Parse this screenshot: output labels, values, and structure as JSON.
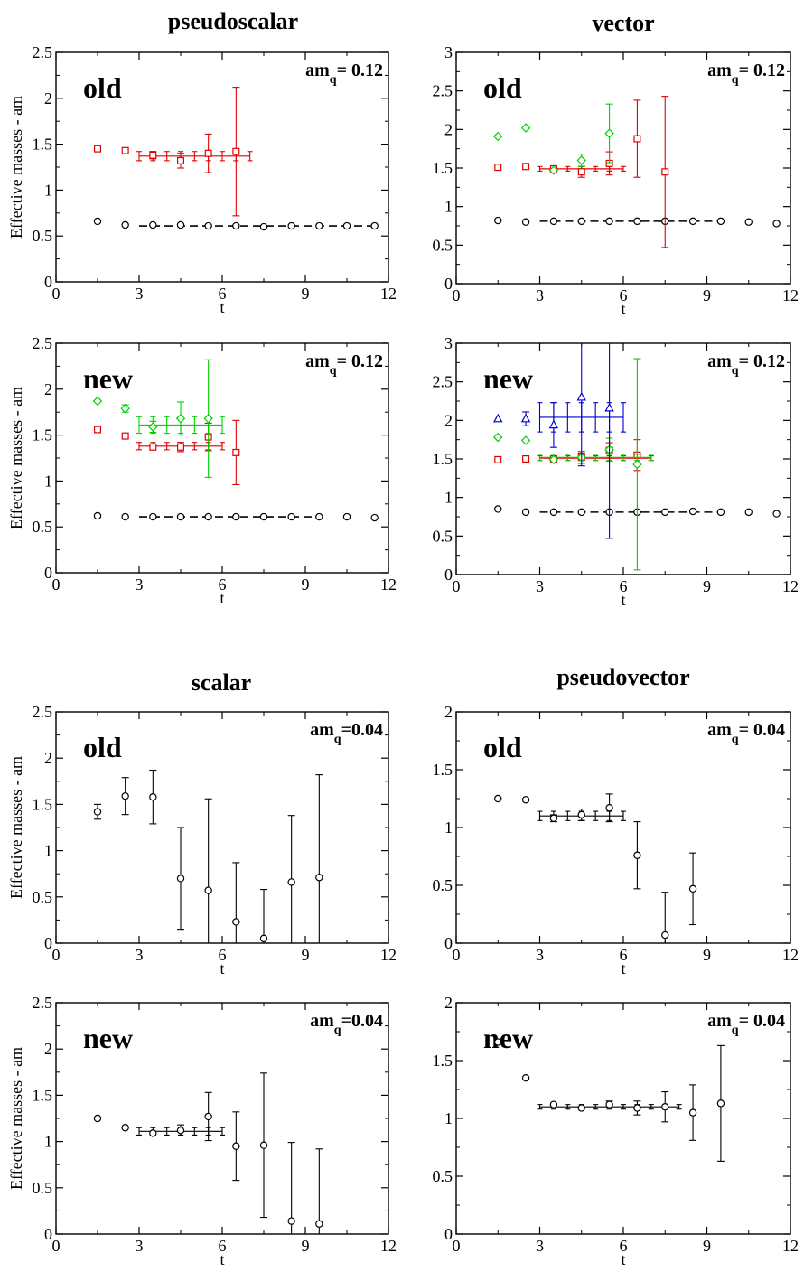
{
  "figure": {
    "xlabel": "t",
    "ylabel": "Effective masses - am",
    "colors": {
      "black": "#000000",
      "red": "#e00000",
      "green": "#00d000",
      "blue": "#0000d0"
    },
    "marker_icons": {
      "black": "circle-icon",
      "red": "square-icon",
      "green": "diamond-icon",
      "blue": "triangle-icon"
    }
  },
  "chart_data": [
    {
      "type": "scatter",
      "column_title": "pseudoscalar",
      "panel_label": "old",
      "mass_label_main": "am",
      "mass_label_sub": "q",
      "mass_label_value": "= 0.12",
      "xlim": [
        0,
        12
      ],
      "xticks": [
        "0",
        "3",
        "6",
        "9",
        "12"
      ],
      "ylim": [
        0,
        2.5
      ],
      "yticks": [
        "0",
        "0.5",
        "1",
        "1.5",
        "2",
        "2.5"
      ],
      "series": [
        {
          "color": "black",
          "marker": "circle",
          "points": [
            [
              1.5,
              0.66
            ],
            [
              2.5,
              0.62
            ],
            [
              3.5,
              0.62
            ],
            [
              4.5,
              0.62
            ],
            [
              5.5,
              0.61
            ],
            [
              6.5,
              0.61
            ],
            [
              7.5,
              0.6
            ],
            [
              8.5,
              0.61
            ],
            [
              9.5,
              0.61
            ],
            [
              10.5,
              0.61
            ],
            [
              11.5,
              0.61
            ]
          ],
          "fit": {
            "x": [
              3,
              11.5
            ],
            "value": 0.61,
            "dashed": true
          }
        },
        {
          "color": "red",
          "marker": "square",
          "points": [
            [
              1.5,
              1.45,
              0.02
            ],
            [
              2.5,
              1.43,
              0.02
            ],
            [
              3.5,
              1.38,
              0.04
            ],
            [
              4.5,
              1.32,
              0.08
            ],
            [
              5.5,
              1.4,
              0.21
            ],
            [
              6.5,
              1.42,
              0.7
            ]
          ],
          "fit": {
            "x": [
              3,
              7
            ],
            "value": 1.37,
            "err": 0.05
          }
        }
      ]
    },
    {
      "type": "scatter",
      "column_title": "vector",
      "panel_label": "old",
      "mass_label_main": "am",
      "mass_label_sub": "q",
      "mass_label_value": "= 0.12",
      "xlim": [
        0,
        12
      ],
      "xticks": [
        "0",
        "3",
        "6",
        "9",
        "12"
      ],
      "ylim": [
        0,
        3
      ],
      "yticks": [
        "0",
        "0.5",
        "1",
        "1.5",
        "2",
        "2.5",
        "3"
      ],
      "series": [
        {
          "color": "black",
          "marker": "circle",
          "points": [
            [
              1.5,
              0.82
            ],
            [
              2.5,
              0.8
            ],
            [
              3.5,
              0.81
            ],
            [
              4.5,
              0.81
            ],
            [
              5.5,
              0.81
            ],
            [
              6.5,
              0.81
            ],
            [
              7.5,
              0.81
            ],
            [
              8.5,
              0.81
            ],
            [
              9.5,
              0.81
            ],
            [
              10.5,
              0.8
            ],
            [
              11.5,
              0.78
            ]
          ],
          "fit": {
            "x": [
              3,
              9.5
            ],
            "value": 0.81,
            "dashed": true
          }
        },
        {
          "color": "red",
          "marker": "square",
          "points": [
            [
              1.5,
              1.51,
              0.02
            ],
            [
              2.5,
              1.52,
              0.02
            ],
            [
              3.5,
              1.49,
              0.03
            ],
            [
              4.5,
              1.45,
              0.07
            ],
            [
              5.5,
              1.56,
              0.15
            ],
            [
              6.5,
              1.88,
              0.5
            ],
            [
              7.5,
              1.45,
              0.98
            ]
          ],
          "fit": {
            "x": [
              3,
              6
            ],
            "value": 1.49,
            "err": 0.03
          }
        },
        {
          "color": "green",
          "marker": "diamond",
          "points": [
            [
              1.5,
              1.91,
              0.01
            ],
            [
              2.5,
              2.02,
              0.01
            ],
            [
              3.5,
              1.47,
              0.02
            ],
            [
              4.5,
              1.6,
              0.08
            ],
            [
              5.5,
              1.95,
              0.38
            ]
          ]
        }
      ]
    },
    {
      "type": "scatter",
      "column_title": "",
      "panel_label": "new",
      "mass_label_main": "am",
      "mass_label_sub": "q",
      "mass_label_value": "= 0.12",
      "xlim": [
        0,
        12
      ],
      "xticks": [
        "0",
        "3",
        "6",
        "9",
        "12"
      ],
      "ylim": [
        0,
        2.5
      ],
      "yticks": [
        "0",
        "0.5",
        "1",
        "1.5",
        "2",
        "2.5"
      ],
      "series": [
        {
          "color": "black",
          "marker": "circle",
          "points": [
            [
              1.5,
              0.62
            ],
            [
              2.5,
              0.61
            ],
            [
              3.5,
              0.61
            ],
            [
              4.5,
              0.61
            ],
            [
              5.5,
              0.61
            ],
            [
              6.5,
              0.61
            ],
            [
              7.5,
              0.61
            ],
            [
              8.5,
              0.61
            ],
            [
              9.5,
              0.61
            ],
            [
              10.5,
              0.61
            ],
            [
              11.5,
              0.6
            ]
          ],
          "fit": {
            "x": [
              3,
              9.5
            ],
            "value": 0.61,
            "dashed": true
          }
        },
        {
          "color": "red",
          "marker": "square",
          "points": [
            [
              1.5,
              1.56,
              0.02
            ],
            [
              2.5,
              1.49,
              0.02
            ],
            [
              3.5,
              1.37,
              0.03
            ],
            [
              4.5,
              1.37,
              0.05
            ],
            [
              5.5,
              1.48,
              0.15
            ],
            [
              6.5,
              1.31,
              0.35
            ]
          ],
          "fit": {
            "x": [
              3,
              6
            ],
            "value": 1.38,
            "err": 0.04
          }
        },
        {
          "color": "green",
          "marker": "diamond",
          "points": [
            [
              1.5,
              1.87,
              0.01
            ],
            [
              2.5,
              1.79,
              0.04
            ],
            [
              3.5,
              1.59,
              0.06
            ],
            [
              4.5,
              1.68,
              0.18
            ],
            [
              5.5,
              1.68,
              0.64
            ]
          ],
          "fit": {
            "x": [
              3,
              6
            ],
            "value": 1.61,
            "err": 0.09
          }
        }
      ]
    },
    {
      "type": "scatter",
      "column_title": "",
      "panel_label": "new",
      "mass_label_main": "am",
      "mass_label_sub": "q",
      "mass_label_value": "= 0.12",
      "xlim": [
        0,
        12
      ],
      "xticks": [
        "0",
        "3",
        "6",
        "9",
        "12"
      ],
      "ylim": [
        0,
        3
      ],
      "yticks": [
        "0",
        "0.5",
        "1",
        "1.5",
        "2",
        "2.5",
        "3"
      ],
      "series": [
        {
          "color": "black",
          "marker": "circle",
          "points": [
            [
              1.5,
              0.85
            ],
            [
              2.5,
              0.81
            ],
            [
              3.5,
              0.81
            ],
            [
              4.5,
              0.81
            ],
            [
              5.5,
              0.81
            ],
            [
              6.5,
              0.81
            ],
            [
              7.5,
              0.81
            ],
            [
              8.5,
              0.82
            ],
            [
              9.5,
              0.81
            ],
            [
              10.5,
              0.81
            ],
            [
              11.5,
              0.79
            ]
          ],
          "fit": {
            "x": [
              3,
              9.5
            ],
            "value": 0.81,
            "dashed": true
          }
        },
        {
          "color": "red",
          "marker": "square",
          "points": [
            [
              1.5,
              1.49,
              0.02
            ],
            [
              2.5,
              1.5,
              0.02
            ],
            [
              3.5,
              1.5,
              0.02
            ],
            [
              4.5,
              1.53,
              0.05
            ],
            [
              5.5,
              1.61,
              0.1
            ],
            [
              6.5,
              1.55,
              0.2
            ]
          ],
          "fit": {
            "x": [
              3,
              7
            ],
            "value": 1.51,
            "err": 0.03
          }
        },
        {
          "color": "green",
          "marker": "diamond",
          "points": [
            [
              1.5,
              1.78,
              0.01
            ],
            [
              2.5,
              1.74,
              0.01
            ],
            [
              3.5,
              1.49,
              0.03
            ],
            [
              4.5,
              1.52,
              0.08
            ],
            [
              5.5,
              1.62,
              0.15
            ],
            [
              6.5,
              1.43,
              1.37
            ]
          ],
          "fit": {
            "x": [
              3,
              7
            ],
            "value": 1.52,
            "err": 0.04
          }
        },
        {
          "color": "blue",
          "marker": "triangle",
          "points": [
            [
              1.5,
              2.02,
              0.02
            ],
            [
              2.5,
              2.02,
              0.09
            ],
            [
              3.5,
              1.94,
              0.29
            ],
            [
              4.5,
              2.3,
              0.89
            ],
            [
              5.5,
              2.16,
              1.69
            ]
          ],
          "fit": {
            "x": [
              3,
              6
            ],
            "value": 2.04,
            "err": 0.19
          }
        }
      ]
    },
    {
      "type": "scatter",
      "column_title": "scalar",
      "panel_label": "old",
      "mass_label_main": "am",
      "mass_label_sub": "q",
      "mass_label_value": "=0.04",
      "xlim": [
        0,
        12
      ],
      "xticks": [
        "0",
        "3",
        "6",
        "9",
        "12"
      ],
      "ylim": [
        0,
        2.5
      ],
      "yticks": [
        "0",
        "0.5",
        "1",
        "1.5",
        "2",
        "2.5"
      ],
      "series": [
        {
          "color": "black",
          "marker": "circle",
          "points": [
            [
              1.5,
              1.42,
              0.08
            ],
            [
              2.5,
              1.59,
              0.2
            ],
            [
              3.5,
              1.58,
              0.29
            ],
            [
              4.5,
              0.7,
              0.55
            ],
            [
              5.5,
              0.57,
              0.99
            ],
            [
              6.5,
              0.23,
              0.64
            ],
            [
              7.5,
              0.05,
              0.53
            ],
            [
              8.5,
              0.66,
              0.72
            ],
            [
              9.5,
              0.71,
              1.11
            ]
          ]
        }
      ]
    },
    {
      "type": "scatter",
      "column_title": "pseudovector",
      "panel_label": "old",
      "mass_label_main": "am",
      "mass_label_sub": "q",
      "mass_label_value": "= 0.04",
      "xlim": [
        0,
        12
      ],
      "xticks": [
        "0",
        "3",
        "6",
        "9",
        "12"
      ],
      "ylim": [
        0,
        2
      ],
      "yticks": [
        "0",
        "0.5",
        "1",
        "1.5",
        "2"
      ],
      "series": [
        {
          "color": "black",
          "marker": "circle",
          "points": [
            [
              1.5,
              1.25,
              0.01
            ],
            [
              2.5,
              1.24,
              0.02
            ],
            [
              3.5,
              1.08,
              0.03
            ],
            [
              4.5,
              1.11,
              0.05
            ],
            [
              5.5,
              1.17,
              0.12
            ],
            [
              6.5,
              0.76,
              0.29
            ],
            [
              7.5,
              0.07,
              0.37
            ],
            [
              8.5,
              0.47,
              0.31
            ]
          ],
          "fit": {
            "x": [
              3,
              6
            ],
            "value": 1.1,
            "err": 0.04
          }
        }
      ]
    },
    {
      "type": "scatter",
      "column_title": "",
      "panel_label": "new",
      "mass_label_main": "am",
      "mass_label_sub": "q",
      "mass_label_value": "=0.04",
      "xlim": [
        0,
        12
      ],
      "xticks": [
        "0",
        "3",
        "6",
        "9",
        "12"
      ],
      "ylim": [
        0,
        2.5
      ],
      "yticks": [
        "0",
        "0.5",
        "1",
        "1.5",
        "2",
        "2.5"
      ],
      "series": [
        {
          "color": "black",
          "marker": "circle",
          "points": [
            [
              1.5,
              1.25,
              0.01
            ],
            [
              2.5,
              1.15,
              0.02
            ],
            [
              3.5,
              1.09,
              0.03
            ],
            [
              4.5,
              1.12,
              0.06
            ],
            [
              5.5,
              1.27,
              0.26
            ],
            [
              6.5,
              0.95,
              0.37
            ],
            [
              7.5,
              0.96,
              0.78
            ],
            [
              8.5,
              0.14,
              0.85
            ],
            [
              9.5,
              0.11,
              0.81
            ]
          ],
          "fit": {
            "x": [
              3,
              6
            ],
            "value": 1.11,
            "err": 0.04
          }
        }
      ]
    },
    {
      "type": "scatter",
      "column_title": "",
      "panel_label": "new",
      "mass_label_main": "am",
      "mass_label_sub": "q",
      "mass_label_value": "= 0.04",
      "xlim": [
        0,
        12
      ],
      "xticks": [
        "0",
        "3",
        "6",
        "9",
        "12"
      ],
      "ylim": [
        0,
        2
      ],
      "yticks": [
        "0",
        "0.5",
        "1",
        "1.5",
        "2"
      ],
      "series": [
        {
          "color": "black",
          "marker": "circle",
          "points": [
            [
              1.5,
              1.66,
              0.01
            ],
            [
              2.5,
              1.35,
              0.01
            ],
            [
              3.5,
              1.12,
              0.01
            ],
            [
              4.5,
              1.09,
              0.02
            ],
            [
              5.5,
              1.12,
              0.03
            ],
            [
              6.5,
              1.09,
              0.06
            ],
            [
              7.5,
              1.1,
              0.13
            ],
            [
              8.5,
              1.05,
              0.24
            ],
            [
              9.5,
              1.13,
              0.5
            ]
          ],
          "fit": {
            "x": [
              3,
              8
            ],
            "value": 1.1,
            "err": 0.02
          }
        }
      ]
    }
  ]
}
